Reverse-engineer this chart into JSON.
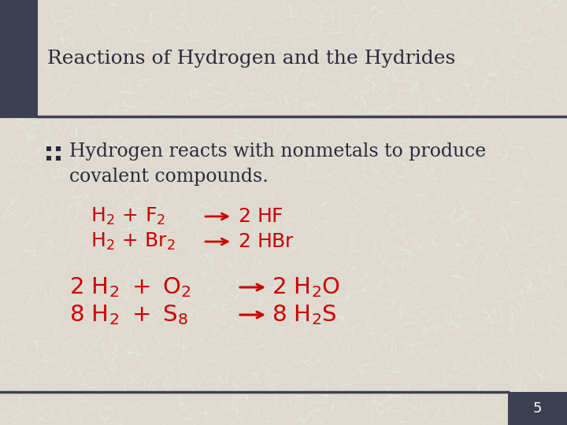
{
  "title": "Reactions of Hydrogen and the Hydrides",
  "bullet_line1": "Hydrogen reacts with nonmetals to produce",
  "bullet_line2": "covalent compounds.",
  "bg_color": "#dedad0",
  "title_color": "#2a2a3a",
  "reaction_color": "#cc0000",
  "accent_color": "#3d3f52",
  "slide_number": "5",
  "font_size_title": 18,
  "font_size_bullet": 17,
  "font_size_rxn1": 17,
  "font_size_rxn2": 19
}
